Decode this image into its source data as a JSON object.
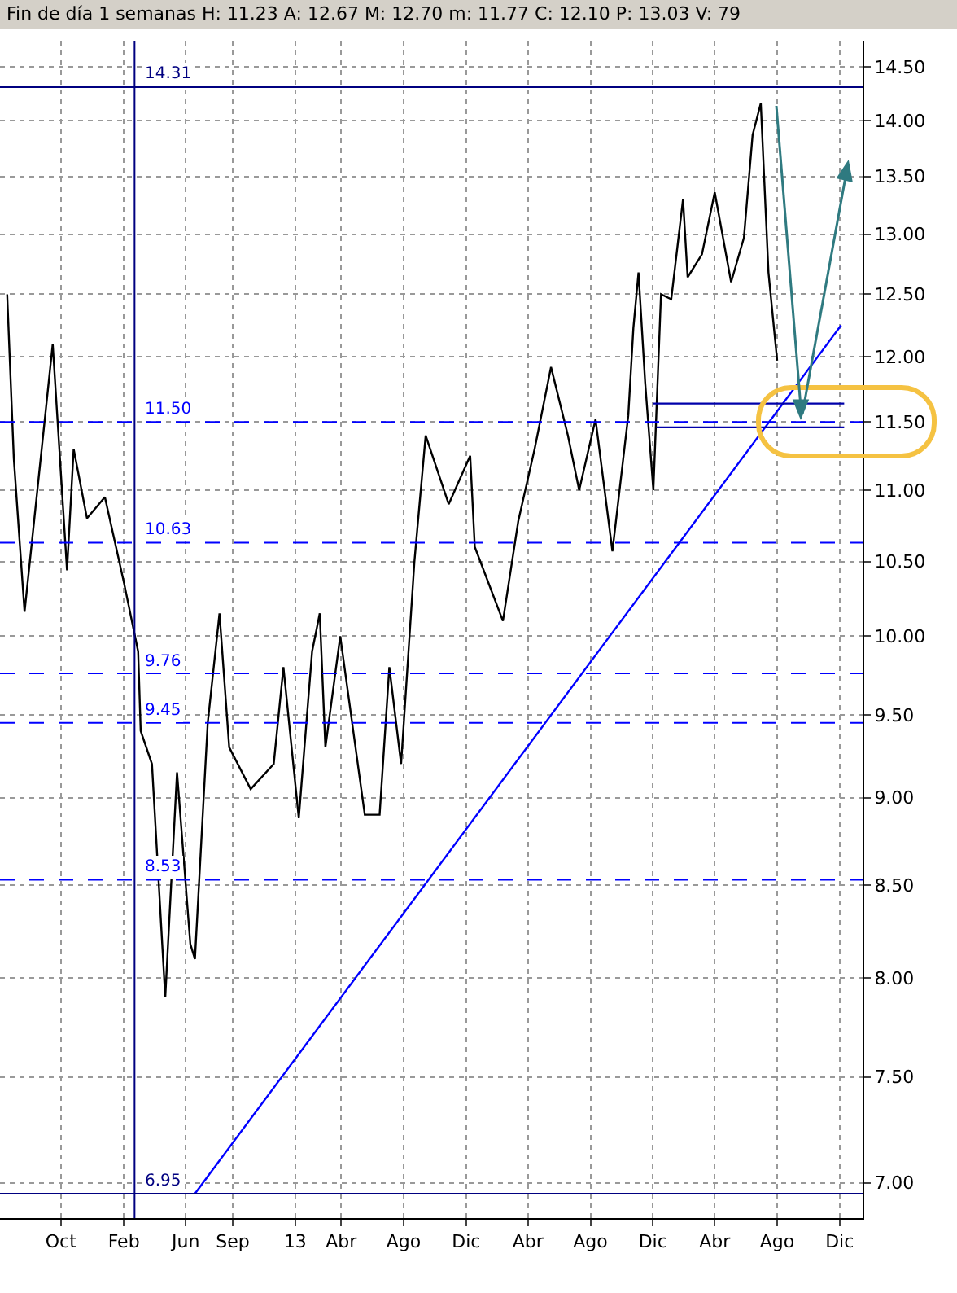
{
  "chart_data": {
    "type": "line",
    "title": "Fin de día 1 semanas H: 11.23 A: 12.67 M: 12.70 m: 11.77 C: 12.10 P: 13.03 V: 79",
    "log": true,
    "grid": true,
    "marker": "none",
    "xlim": [
      "2011-06-04",
      "2016-01-15"
    ],
    "xticks": [
      {
        "value": "2011-10-01",
        "label": "Oct"
      },
      {
        "value": "2012-02-01",
        "label": "Feb"
      },
      {
        "value": "2012-06-01",
        "label": "Jun"
      },
      {
        "value": "2012-09-01",
        "label": "Sep"
      },
      {
        "value": "2013-01-01",
        "label": "13"
      },
      {
        "value": "2013-04-01",
        "label": "Abr"
      },
      {
        "value": "2013-08-01",
        "label": "Ago"
      },
      {
        "value": "2013-12-01",
        "label": "Dic"
      },
      {
        "value": "2014-04-01",
        "label": "Abr"
      },
      {
        "value": "2014-08-01",
        "label": "Ago"
      },
      {
        "value": "2014-12-01",
        "label": "Dic"
      },
      {
        "value": "2015-04-01",
        "label": "Abr"
      },
      {
        "value": "2015-08-01",
        "label": "Ago"
      },
      {
        "value": "2015-12-01",
        "label": "Dic"
      }
    ],
    "ylim": [
      6.84,
      14.75
    ],
    "yticks": [
      {
        "value": 7,
        "label": "7.00"
      },
      {
        "value": 7.5,
        "label": "7.50"
      },
      {
        "value": 8,
        "label": "8.00"
      },
      {
        "value": 8.5,
        "label": "8.50"
      },
      {
        "value": 9,
        "label": "9.00"
      },
      {
        "value": 9.5,
        "label": "9.50"
      },
      {
        "value": 10,
        "label": "10.00"
      },
      {
        "value": 10.5,
        "label": "10.50"
      },
      {
        "value": 11,
        "label": "11.00"
      },
      {
        "value": 11.5,
        "label": "11.50"
      },
      {
        "value": 12,
        "label": "12.00"
      },
      {
        "value": 12.5,
        "label": "12.50"
      },
      {
        "value": 13,
        "label": "13.00"
      },
      {
        "value": 13.5,
        "label": "13.50"
      },
      {
        "value": 14,
        "label": "14.00"
      },
      {
        "value": 14.5,
        "label": "14.50"
      }
    ],
    "series": [
      {
        "color": "#000000",
        "x": [
          "2011-06-18",
          "2011-07-01",
          "2011-07-22",
          "2011-09-15",
          "2011-10-13",
          "2011-10-26",
          "2011-11-21",
          "2011-12-26",
          "2012-02-01",
          "2012-02-29",
          "2012-03-05",
          "2012-03-27",
          "2012-04-22",
          "2012-05-15",
          "2012-06-10",
          "2012-06-19",
          "2012-07-14",
          "2012-08-06",
          "2012-08-25",
          "2012-10-06",
          "2012-11-20",
          "2012-12-09",
          "2013-01-08",
          "2013-02-03",
          "2013-02-18",
          "2013-03-01",
          "2013-03-30",
          "2013-05-17",
          "2013-06-15",
          "2013-07-04",
          "2013-07-27",
          "2013-08-22",
          "2013-09-13",
          "2013-10-28",
          "2013-12-09",
          "2013-12-18",
          "2014-02-11",
          "2014-03-13",
          "2014-04-14",
          "2014-05-16",
          "2014-06-18",
          "2014-07-10",
          "2014-08-11",
          "2014-09-13",
          "2014-10-14",
          "2014-10-24",
          "2014-11-03",
          "2014-11-16",
          "2014-12-02",
          "2014-12-17",
          "2015-01-06",
          "2015-01-29",
          "2015-02-07",
          "2015-03-07",
          "2015-04-01",
          "2015-05-03",
          "2015-05-28",
          "2015-06-14",
          "2015-06-30",
          "2015-07-15",
          "2015-08-01"
        ],
        "values": [
          12.5,
          11.23,
          10.16,
          12.1,
          10.44,
          11.3,
          10.8,
          10.95,
          10.36,
          9.9,
          9.4,
          9.2,
          7.9,
          9.15,
          8.18,
          8.1,
          9.45,
          10.15,
          9.3,
          9.05,
          9.2,
          9.8,
          8.88,
          9.9,
          10.15,
          9.3,
          10.0,
          8.9,
          8.9,
          9.8,
          9.2,
          10.5,
          11.4,
          10.9,
          11.25,
          10.6,
          10.1,
          10.78,
          11.3,
          11.92,
          11.4,
          11.0,
          11.52,
          10.57,
          11.55,
          12.23,
          12.68,
          11.8,
          11.0,
          12.5,
          12.46,
          13.3,
          12.64,
          12.83,
          13.36,
          12.6,
          12.97,
          13.87,
          14.16,
          12.68,
          11.97
        ]
      },
      {
        "type": "line",
        "color": "#0000ff",
        "x": [
          "2012-06-19",
          "2015-12-04"
        ],
        "values": [
          6.95,
          12.25
        ]
      },
      {
        "type": "line",
        "color": "#0000aa",
        "x": [
          "2014-12-02",
          "2015-12-10"
        ],
        "values": [
          11.64,
          11.64
        ]
      },
      {
        "type": "line",
        "color": "#0000aa",
        "x": [
          "2014-12-08",
          "2015-12-10"
        ],
        "values": [
          11.46,
          11.46
        ]
      }
    ],
    "ref_lines": [
      {
        "axis": "y",
        "value": 14.31,
        "label": "14.31",
        "color": "#000080",
        "line_style": "solid"
      },
      {
        "axis": "y",
        "value": 11.5,
        "label": "11.50",
        "color": "#0000ff",
        "line_style": "dashed"
      },
      {
        "axis": "y",
        "value": 10.63,
        "label": "10.63",
        "color": "#0000ff",
        "line_style": "dashed"
      },
      {
        "axis": "y",
        "value": 9.76,
        "label": "9.76",
        "color": "#0000ff",
        "line_style": "dashed"
      },
      {
        "axis": "y",
        "value": 9.45,
        "label": "9.45",
        "color": "#0000ff",
        "line_style": "dashed"
      },
      {
        "axis": "y",
        "value": 8.53,
        "label": "8.53",
        "color": "#0000ff",
        "line_style": "dashed"
      },
      {
        "axis": "y",
        "value": 6.95,
        "label": "6.95",
        "color": "#000080",
        "line_style": "solid"
      },
      {
        "axis": "x",
        "value": "2012-02-22",
        "color": "#000080",
        "line_style": "solid"
      }
    ]
  }
}
